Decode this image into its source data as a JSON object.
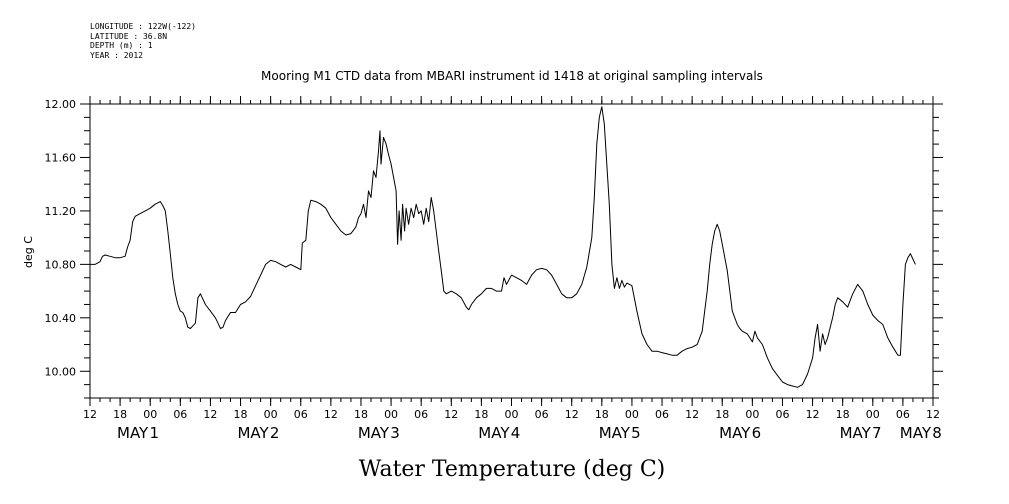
{
  "header": {
    "longitude": "LONGITUDE : 122W(-122)",
    "latitude": "LATITUDE : 36.8N",
    "depth": "DEPTH (m) : 1",
    "year": "YEAR : 2012"
  },
  "chart_data": {
    "type": "line",
    "title": "Mooring M1 CTD data from MBARI instrument id 1418 at original sampling intervals",
    "xlabel": "Water Temperature (deg C)",
    "ylabel": "deg C",
    "x_unit": "hours since 2012-04-30 12:00",
    "xlim": [
      0,
      168
    ],
    "ylim": [
      9.8,
      12.0
    ],
    "y_ticks": [
      "10.00",
      "10.40",
      "10.80",
      "11.20",
      "11.60",
      "12.00"
    ],
    "x_hour_ticks": [
      "12",
      "18",
      "00",
      "06",
      "12",
      "18",
      "00",
      "06",
      "12",
      "18",
      "00",
      "06",
      "12",
      "18",
      "00",
      "06",
      "12",
      "18",
      "00",
      "06",
      "12",
      "18",
      "00",
      "06",
      "12",
      "18",
      "00",
      "06",
      "12"
    ],
    "x_day_labels": [
      {
        "month": "MAY",
        "day": "1",
        "hour": 12
      },
      {
        "month": "MAY",
        "day": "2",
        "hour": 36
      },
      {
        "month": "MAY",
        "day": "3",
        "hour": 60
      },
      {
        "month": "MAY",
        "day": "4",
        "hour": 84
      },
      {
        "month": "MAY",
        "day": "5",
        "hour": 108
      },
      {
        "month": "MAY",
        "day": "6",
        "hour": 132
      },
      {
        "month": "MAY",
        "day": "7",
        "hour": 156
      },
      {
        "month": "MAY",
        "day": "8",
        "hour": 168
      }
    ],
    "grid": false,
    "series": [
      {
        "name": "",
        "color": "#000000",
        "points": [
          [
            0,
            10.8
          ],
          [
            1,
            10.8
          ],
          [
            2,
            10.82
          ],
          [
            2.5,
            10.86
          ],
          [
            3,
            10.87
          ],
          [
            4,
            10.86
          ],
          [
            5,
            10.85
          ],
          [
            6,
            10.85
          ],
          [
            7,
            10.86
          ],
          [
            7.5,
            10.93
          ],
          [
            8,
            10.98
          ],
          [
            8.5,
            11.12
          ],
          [
            9,
            11.16
          ],
          [
            10,
            11.18
          ],
          [
            11,
            11.2
          ],
          [
            12,
            11.22
          ],
          [
            13,
            11.25
          ],
          [
            14,
            11.27
          ],
          [
            14.5,
            11.24
          ],
          [
            15,
            11.2
          ],
          [
            15.5,
            11.05
          ],
          [
            16,
            10.88
          ],
          [
            16.5,
            10.7
          ],
          [
            17,
            10.58
          ],
          [
            17.5,
            10.5
          ],
          [
            18,
            10.45
          ],
          [
            18.5,
            10.44
          ],
          [
            19,
            10.4
          ],
          [
            19.5,
            10.33
          ],
          [
            20,
            10.32
          ],
          [
            20.5,
            10.34
          ],
          [
            21,
            10.36
          ],
          [
            21.5,
            10.55
          ],
          [
            22,
            10.58
          ],
          [
            23,
            10.5
          ],
          [
            24,
            10.45
          ],
          [
            25,
            10.4
          ],
          [
            25.5,
            10.36
          ],
          [
            26,
            10.32
          ],
          [
            26.5,
            10.33
          ],
          [
            27,
            10.38
          ],
          [
            28,
            10.44
          ],
          [
            29,
            10.44
          ],
          [
            30,
            10.5
          ],
          [
            31,
            10.52
          ],
          [
            32,
            10.56
          ],
          [
            33,
            10.64
          ],
          [
            34,
            10.72
          ],
          [
            35,
            10.8
          ],
          [
            36,
            10.83
          ],
          [
            37,
            10.82
          ],
          [
            38,
            10.8
          ],
          [
            39,
            10.78
          ],
          [
            40,
            10.8
          ],
          [
            41,
            10.78
          ],
          [
            42,
            10.76
          ],
          [
            42.3,
            10.96
          ],
          [
            43,
            10.98
          ],
          [
            43.5,
            11.2
          ],
          [
            44,
            11.28
          ],
          [
            45,
            11.27
          ],
          [
            46,
            11.25
          ],
          [
            47,
            11.22
          ],
          [
            48,
            11.15
          ],
          [
            49,
            11.1
          ],
          [
            50,
            11.05
          ],
          [
            51,
            11.02
          ],
          [
            52,
            11.03
          ],
          [
            53,
            11.08
          ],
          [
            53.5,
            11.15
          ],
          [
            54,
            11.18
          ],
          [
            54.5,
            11.25
          ],
          [
            55,
            11.15
          ],
          [
            55.5,
            11.35
          ],
          [
            56,
            11.3
          ],
          [
            56.5,
            11.5
          ],
          [
            57,
            11.45
          ],
          [
            57.5,
            11.65
          ],
          [
            57.8,
            11.8
          ],
          [
            58,
            11.55
          ],
          [
            58.5,
            11.75
          ],
          [
            59,
            11.7
          ],
          [
            59.5,
            11.62
          ],
          [
            60,
            11.55
          ],
          [
            60.5,
            11.45
          ],
          [
            61,
            11.35
          ],
          [
            61.3,
            10.95
          ],
          [
            61.6,
            11.2
          ],
          [
            62,
            10.98
          ],
          [
            62.3,
            11.25
          ],
          [
            62.7,
            11.05
          ],
          [
            63,
            11.22
          ],
          [
            63.5,
            11.1
          ],
          [
            64,
            11.22
          ],
          [
            64.5,
            11.15
          ],
          [
            65,
            11.25
          ],
          [
            65.5,
            11.18
          ],
          [
            66,
            11.2
          ],
          [
            66.5,
            11.1
          ],
          [
            67,
            11.22
          ],
          [
            67.5,
            11.12
          ],
          [
            68,
            11.3
          ],
          [
            68.5,
            11.2
          ],
          [
            69,
            11.05
          ],
          [
            69.5,
            10.9
          ],
          [
            70,
            10.75
          ],
          [
            70.5,
            10.6
          ],
          [
            71,
            10.58
          ],
          [
            72,
            10.6
          ],
          [
            73,
            10.58
          ],
          [
            74,
            10.55
          ],
          [
            75,
            10.48
          ],
          [
            75.5,
            10.46
          ],
          [
            76,
            10.5
          ],
          [
            77,
            10.55
          ],
          [
            78,
            10.58
          ],
          [
            79,
            10.62
          ],
          [
            80,
            10.62
          ],
          [
            81,
            10.6
          ],
          [
            82,
            10.6
          ],
          [
            82.5,
            10.7
          ],
          [
            83,
            10.65
          ],
          [
            84,
            10.72
          ],
          [
            85,
            10.7
          ],
          [
            86,
            10.68
          ],
          [
            87,
            10.65
          ],
          [
            88,
            10.72
          ],
          [
            89,
            10.76
          ],
          [
            90,
            10.77
          ],
          [
            91,
            10.76
          ],
          [
            92,
            10.72
          ],
          [
            93,
            10.65
          ],
          [
            94,
            10.58
          ],
          [
            95,
            10.55
          ],
          [
            96,
            10.55
          ],
          [
            97,
            10.58
          ],
          [
            98,
            10.65
          ],
          [
            99,
            10.78
          ],
          [
            100,
            11.0
          ],
          [
            100.5,
            11.3
          ],
          [
            101,
            11.7
          ],
          [
            101.5,
            11.9
          ],
          [
            102,
            11.98
          ],
          [
            102.5,
            11.85
          ],
          [
            103,
            11.55
          ],
          [
            103.5,
            11.25
          ],
          [
            104,
            10.8
          ],
          [
            104.5,
            10.62
          ],
          [
            105,
            10.7
          ],
          [
            105.5,
            10.62
          ],
          [
            106,
            10.68
          ],
          [
            106.5,
            10.63
          ],
          [
            107,
            10.66
          ],
          [
            108,
            10.64
          ],
          [
            109,
            10.45
          ],
          [
            110,
            10.28
          ],
          [
            111,
            10.2
          ],
          [
            112,
            10.15
          ],
          [
            113,
            10.15
          ],
          [
            114,
            10.14
          ],
          [
            115,
            10.13
          ],
          [
            116,
            10.12
          ],
          [
            117,
            10.12
          ],
          [
            118,
            10.15
          ],
          [
            119,
            10.17
          ],
          [
            120,
            10.18
          ],
          [
            121,
            10.2
          ],
          [
            122,
            10.3
          ],
          [
            122.5,
            10.45
          ],
          [
            123,
            10.6
          ],
          [
            123.5,
            10.8
          ],
          [
            124,
            10.95
          ],
          [
            124.5,
            11.05
          ],
          [
            125,
            11.1
          ],
          [
            125.5,
            11.05
          ],
          [
            126,
            10.95
          ],
          [
            126.5,
            10.85
          ],
          [
            127,
            10.75
          ],
          [
            127.5,
            10.6
          ],
          [
            128,
            10.45
          ],
          [
            128.5,
            10.4
          ],
          [
            129,
            10.35
          ],
          [
            129.5,
            10.32
          ],
          [
            130,
            10.3
          ],
          [
            131,
            10.28
          ],
          [
            132,
            10.22
          ],
          [
            132.5,
            10.3
          ],
          [
            133,
            10.25
          ],
          [
            134,
            10.2
          ],
          [
            135,
            10.1
          ],
          [
            136,
            10.02
          ],
          [
            137,
            9.97
          ],
          [
            138,
            9.92
          ],
          [
            139,
            9.9
          ],
          [
            140,
            9.89
          ],
          [
            141,
            9.88
          ],
          [
            142,
            9.9
          ],
          [
            143,
            9.98
          ],
          [
            144,
            10.1
          ],
          [
            144.5,
            10.25
          ],
          [
            145,
            10.35
          ],
          [
            145.5,
            10.15
          ],
          [
            146,
            10.28
          ],
          [
            146.5,
            10.2
          ],
          [
            147,
            10.25
          ],
          [
            148,
            10.4
          ],
          [
            148.5,
            10.5
          ],
          [
            149,
            10.55
          ],
          [
            150,
            10.52
          ],
          [
            151,
            10.48
          ],
          [
            152,
            10.58
          ],
          [
            153,
            10.65
          ],
          [
            154,
            10.6
          ],
          [
            155,
            10.5
          ],
          [
            156,
            10.42
          ],
          [
            157,
            10.38
          ],
          [
            158,
            10.35
          ],
          [
            159,
            10.25
          ],
          [
            160,
            10.18
          ],
          [
            160.5,
            10.15
          ],
          [
            161,
            10.12
          ],
          [
            161.5,
            10.12
          ],
          [
            162,
            10.5
          ],
          [
            162.5,
            10.8
          ],
          [
            163,
            10.85
          ],
          [
            163.5,
            10.88
          ],
          [
            164,
            10.84
          ],
          [
            164.5,
            10.8
          ]
        ]
      }
    ]
  }
}
